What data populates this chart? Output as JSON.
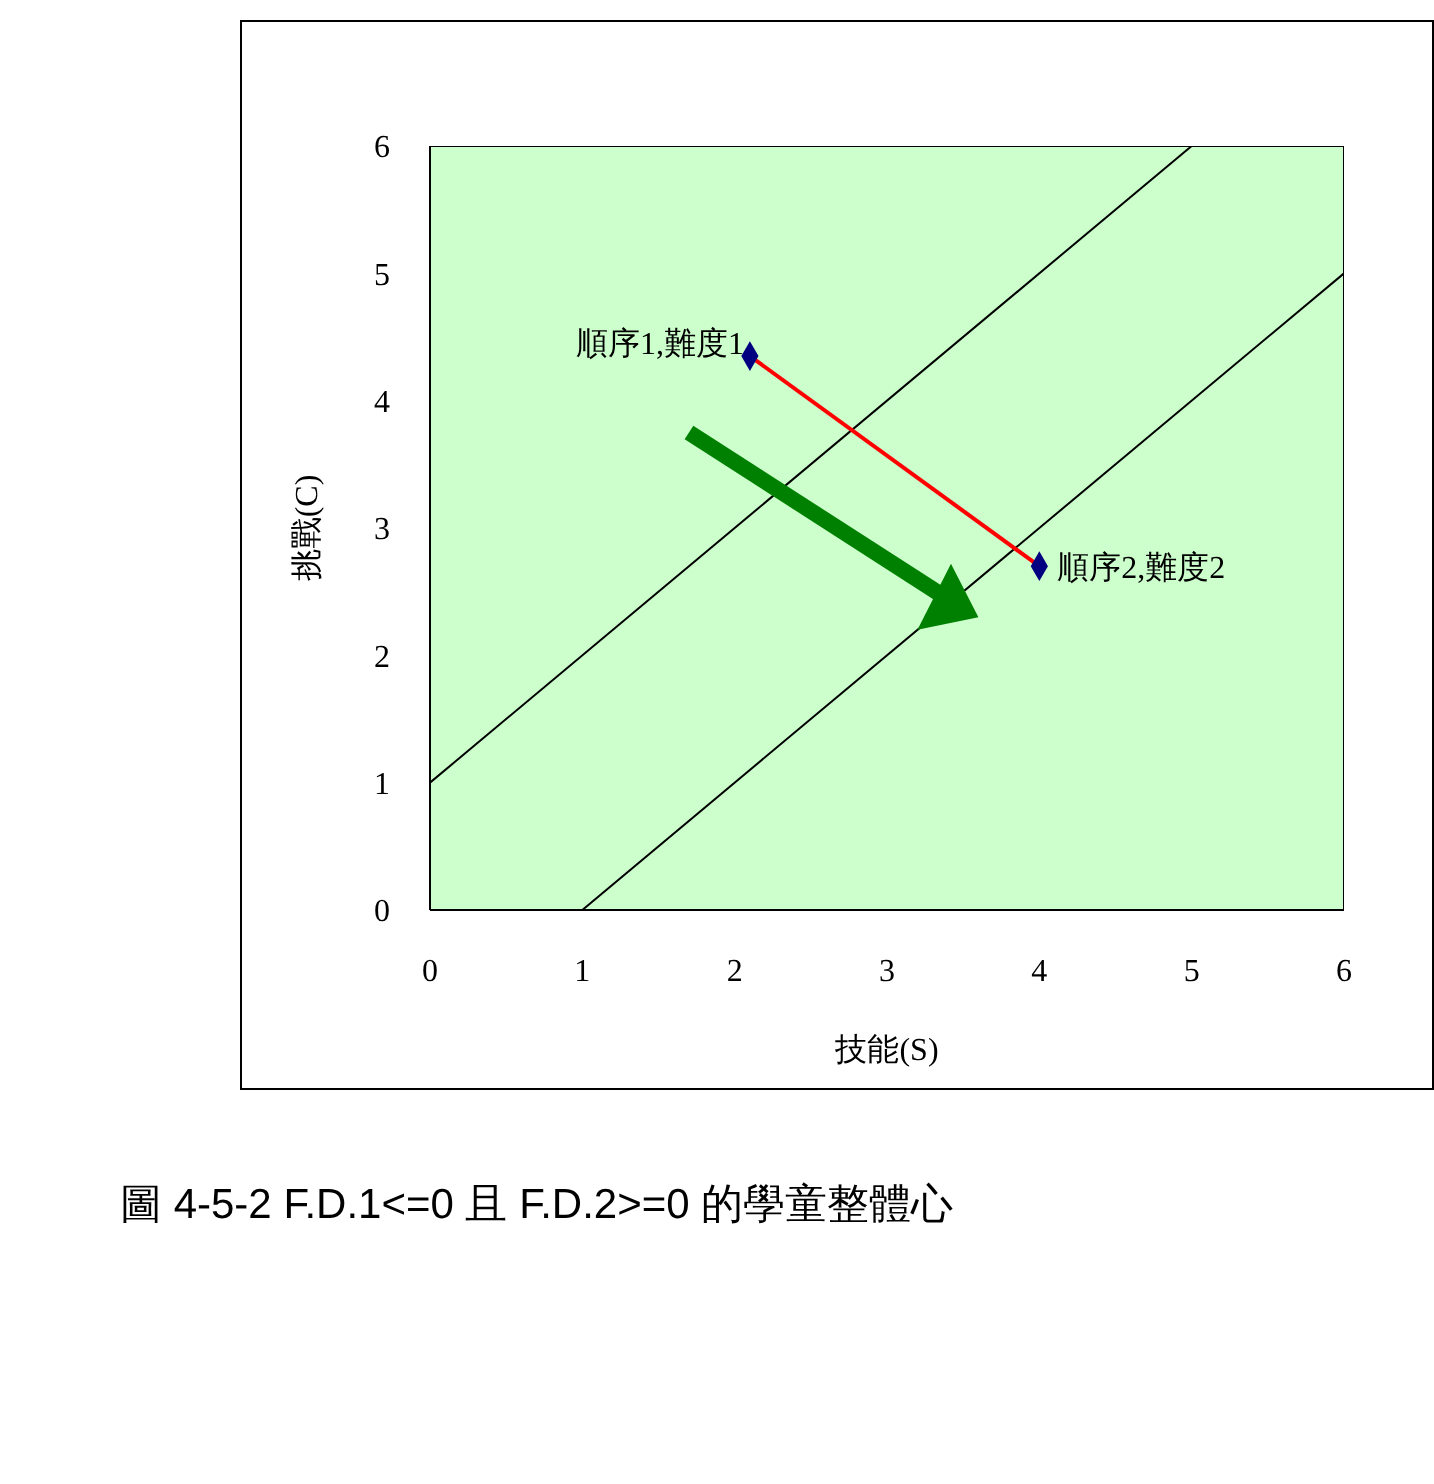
{
  "chart_data": {
    "type": "scatter",
    "xlabel": "技能(S)",
    "ylabel": "挑戰(C)",
    "xlim": [
      0,
      6
    ],
    "ylim": [
      0,
      6
    ],
    "xticks": [
      0,
      1,
      2,
      3,
      4,
      5,
      6
    ],
    "yticks": [
      0,
      1,
      2,
      3,
      4,
      5,
      6
    ],
    "series": [
      {
        "type": "line",
        "color": "#000000",
        "x": [
          0,
          5
        ],
        "values": [
          1,
          6
        ],
        "marker": "none"
      },
      {
        "type": "line",
        "color": "#000000",
        "x": [
          1,
          6
        ],
        "values": [
          0,
          5
        ],
        "marker": "none"
      },
      {
        "type": "line",
        "color": "#ff0000",
        "x": [
          2.1,
          4
        ],
        "values": [
          4.35,
          2.7
        ],
        "marker": "none"
      },
      {
        "color": "#000080",
        "x": [
          2.1,
          4
        ],
        "values": [
          4.35,
          2.7
        ],
        "marker": "diamond"
      }
    ],
    "annotations": [
      {
        "text": "順序1,難度1",
        "x": 2.1,
        "y": 4.35
      },
      {
        "text": "順序2,難度2",
        "x": 4,
        "y": 2.7
      },
      "圖 4-5-2 F.D.1<=0 且 F.D.2>=0 的學童整體心"
    ]
  }
}
